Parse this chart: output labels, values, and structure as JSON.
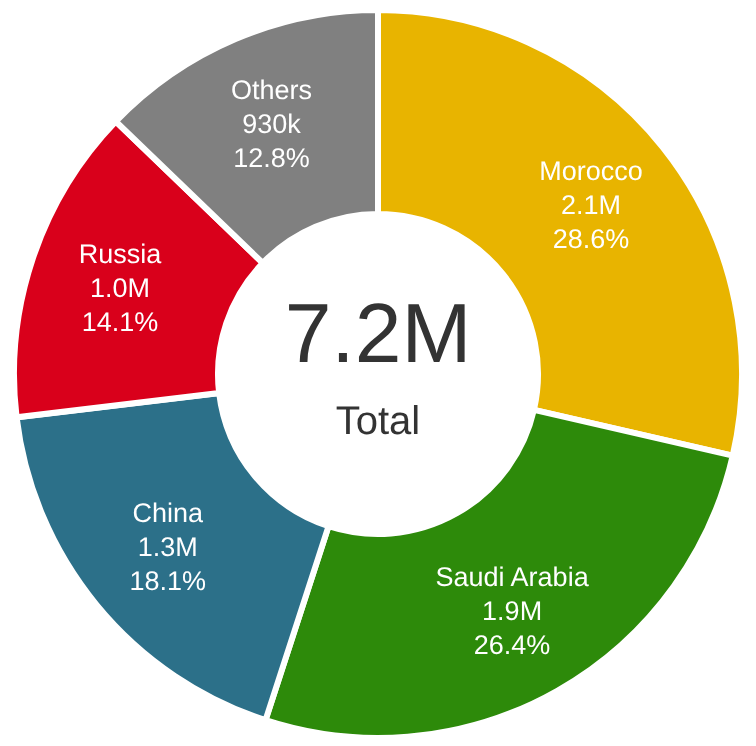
{
  "chart_data": {
    "type": "donut",
    "categories": [
      "Morocco",
      "Saudi Arabia",
      "China",
      "Russia",
      "Others"
    ],
    "values": [
      28.6,
      26.4,
      18.1,
      14.1,
      12.8
    ],
    "colors": [
      "#e8b400",
      "#2d8a0a",
      "#2c7089",
      "#d9001b",
      "#808080"
    ],
    "value_labels": [
      "2.1M\n28.6%",
      "1.9M\n26.4%",
      "1.3M\n18.1%",
      "1.0M\n14.1%",
      "930k\n12.8%"
    ],
    "annotations": [
      "7.2M",
      "Total"
    ]
  }
}
